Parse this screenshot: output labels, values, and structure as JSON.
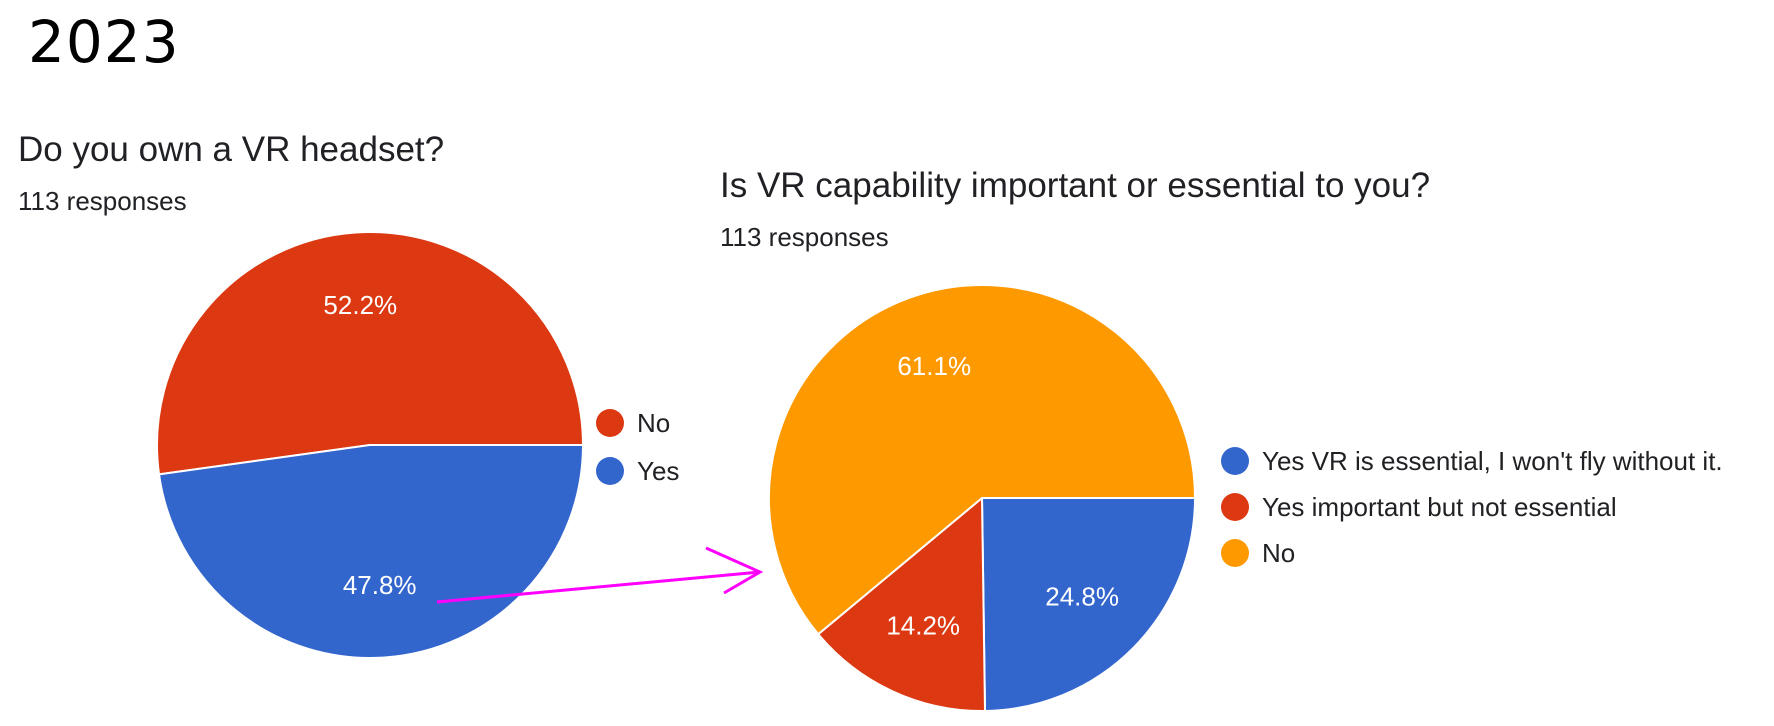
{
  "page": {
    "year_label": "2023"
  },
  "colors": {
    "no_red": "#DC3912",
    "yes_blue": "#3366CC",
    "no_orange": "#FF9900",
    "arrow": "#FF00FF"
  },
  "chart_data": [
    {
      "type": "pie",
      "title": "Do you own a VR headset?",
      "subtitle": "113 responses",
      "legend_position": "right",
      "slices": [
        {
          "label": "No",
          "value": 52.2,
          "display": "52.2%",
          "color": "#DC3912"
        },
        {
          "label": "Yes",
          "value": 47.8,
          "display": "47.8%",
          "color": "#3366CC"
        }
      ]
    },
    {
      "type": "pie",
      "title": "Is VR capability important or essential to you?",
      "subtitle": "113 responses",
      "legend_position": "right",
      "slices": [
        {
          "label": "Yes VR is essential, I won't fly without it.",
          "value": 24.8,
          "display": "24.8%",
          "color": "#3366CC"
        },
        {
          "label": "Yes important but not essential",
          "value": 14.2,
          "display": "14.2%",
          "color": "#DC3912"
        },
        {
          "label": "No",
          "value": 61.1,
          "display": "61.1%",
          "color": "#FF9900"
        }
      ]
    }
  ]
}
